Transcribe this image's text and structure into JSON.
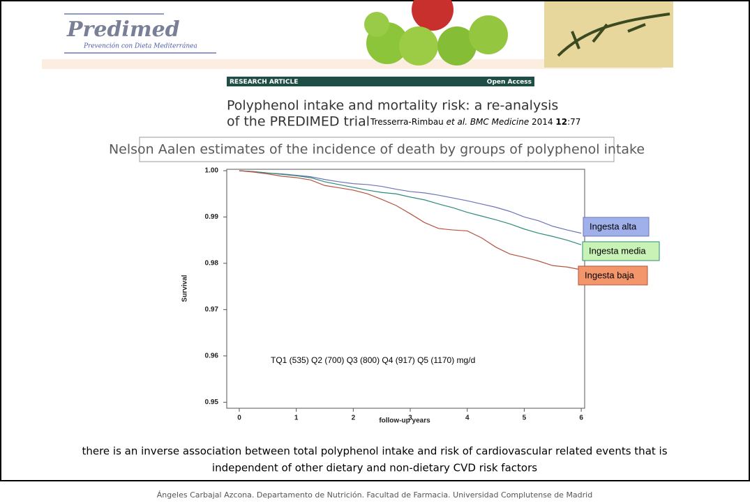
{
  "header": {
    "logo_title": "Predimed",
    "logo_subtitle": "Prevención con Dieta Mediterránea"
  },
  "article": {
    "tag": "RESEARCH ARTICLE",
    "access": "Open Access",
    "title_lines": [
      "Polyphenol intake and mortality risk: a re-analysis",
      "of the PREDIMED trial"
    ],
    "citation": {
      "authors": "Tresserra-Rimbau ",
      "journal": "et al. BMC Medicine",
      "year": " 2014 ",
      "volume": "12",
      "pages": ":77"
    }
  },
  "chart_data": {
    "type": "line",
    "title": "Nelson Aalen estimates of the incidence of death by groups of polyphenol intake",
    "x_label": "follow-up years",
    "y_label": "Survival",
    "annotation": "TQ1 (535) Q2 (700) Q3 (800) Q4 (917) Q5 (1170) mg/d",
    "x": [
      0,
      0.25,
      0.5,
      0.75,
      1,
      1.25,
      1.5,
      1.75,
      2,
      2.25,
      2.5,
      2.75,
      3,
      3.25,
      3.5,
      3.75,
      4,
      4.25,
      4.5,
      4.75,
      5,
      5.25,
      5.5,
      5.75,
      6
    ],
    "series": [
      {
        "name": "Ingesta alta",
        "color": "#6f73b8",
        "legend_color": "#9fb0ea",
        "values": [
          1,
          0.9998,
          0.9995,
          0.9993,
          0.999,
          0.9987,
          0.9981,
          0.9976,
          0.9972,
          0.997,
          0.9966,
          0.996,
          0.9955,
          0.9952,
          0.9947,
          0.9941,
          0.9935,
          0.9928,
          0.9921,
          0.9912,
          0.99,
          0.9892,
          0.988,
          0.9872,
          0.9865
        ]
      },
      {
        "name": "Ingesta media",
        "color": "#2e8b7a",
        "legend_color": "#c9f2b6",
        "values": [
          1,
          0.9998,
          0.9995,
          0.9992,
          0.9989,
          0.9985,
          0.9976,
          0.997,
          0.9964,
          0.9958,
          0.9953,
          0.995,
          0.9943,
          0.9937,
          0.9928,
          0.992,
          0.991,
          0.9902,
          0.9894,
          0.9885,
          0.9874,
          0.9865,
          0.9858,
          0.985,
          0.984
        ]
      },
      {
        "name": "Ingesta baja",
        "color": "#b5533f",
        "legend_color": "#f4966c",
        "values": [
          1,
          0.9997,
          0.9993,
          0.9988,
          0.9985,
          0.998,
          0.9968,
          0.9963,
          0.9958,
          0.995,
          0.9938,
          0.9925,
          0.9907,
          0.9888,
          0.9875,
          0.9872,
          0.987,
          0.9855,
          0.9835,
          0.982,
          0.9813,
          0.9805,
          0.9795,
          0.9792,
          0.9786
        ]
      }
    ],
    "xlim": [
      -0.22,
      6.06
    ],
    "ylim": [
      0.9487,
      1.0003
    ],
    "xticks": [
      0,
      1,
      2,
      3,
      4,
      5,
      6
    ],
    "yticks": [
      {
        "value": 1,
        "label": "1.00"
      },
      0.99,
      0.98,
      0.97,
      0.96,
      0.95
    ]
  },
  "conclusion": [
    "there is an inverse association between total polyphenol intake and risk of cardiovascular related events that is",
    "independent of other dietary and non-dietary CVD risk factors"
  ],
  "footer": "Ángeles Carbajal Azcona. Departamento de Nutrición. Facultad de Farmacia. Universidad Complutense de Madrid"
}
